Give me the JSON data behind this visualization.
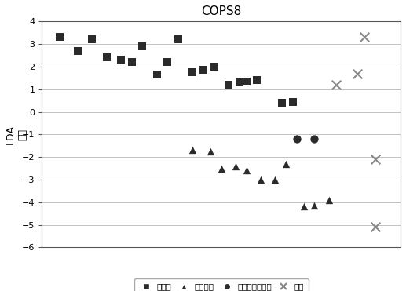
{
  "title": "COPS8",
  "ylabel": "LDA\n得分",
  "ylim": [
    -6,
    4
  ],
  "yticks": [
    -6,
    -5,
    -4,
    -3,
    -2,
    -1,
    0,
    1,
    2,
    3,
    4
  ],
  "xlim": [
    0,
    100
  ],
  "responders": {
    "label": "响应者",
    "x": [
      5,
      10,
      14,
      18,
      22,
      25,
      28,
      32,
      35,
      38,
      42,
      45,
      48,
      52,
      55,
      57,
      60,
      67,
      70
    ],
    "y": [
      3.3,
      2.7,
      3.2,
      2.4,
      2.3,
      2.2,
      2.9,
      1.65,
      2.2,
      3.2,
      1.75,
      1.85,
      2.0,
      1.2,
      1.3,
      1.35,
      1.4,
      0.4,
      0.45
    ],
    "marker": "s",
    "color": "#2b2b2b",
    "size": 45
  },
  "non_responders": {
    "label": "非响应者",
    "x": [
      42,
      47,
      50,
      54,
      57,
      61,
      65,
      68,
      73,
      76,
      80
    ],
    "y": [
      -1.7,
      -1.75,
      -2.5,
      -2.4,
      -2.6,
      -3.0,
      -3.0,
      -2.3,
      -4.2,
      -4.15,
      -3.9
    ],
    "marker": "^",
    "color": "#2b2b2b",
    "size": 45
  },
  "excluded_non_responders": {
    "label": "排除的非响应者",
    "x": [
      71,
      76
    ],
    "y": [
      -1.2,
      -1.2
    ],
    "marker": "o",
    "color": "#2b2b2b",
    "size": 55
  },
  "unknown": {
    "label": "未知",
    "x": [
      82,
      88,
      90,
      93,
      93
    ],
    "y": [
      1.2,
      1.7,
      3.3,
      -2.1,
      -5.1
    ],
    "marker": "x",
    "color": "#888888",
    "size": 70,
    "linewidths": 1.5
  }
}
